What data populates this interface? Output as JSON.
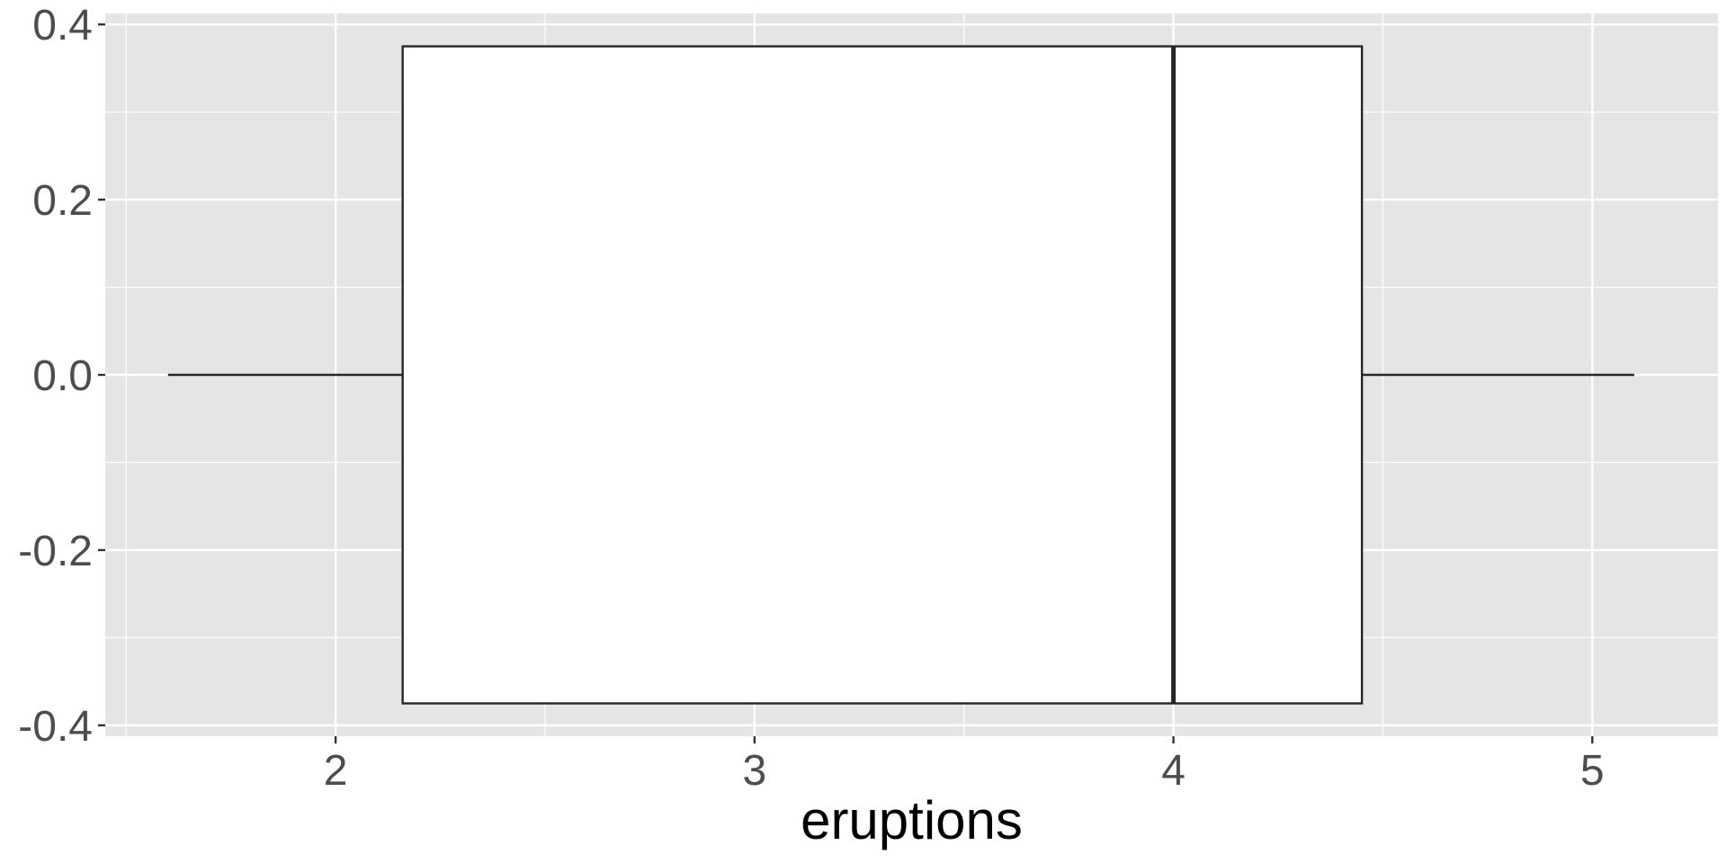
{
  "chart_data": {
    "type": "boxplot",
    "title": "",
    "xlabel": "eruptions",
    "ylabel": "",
    "xlim": [
      1.45,
      5.3
    ],
    "ylim": [
      -0.4125,
      0.4125
    ],
    "x_ticks": [
      2,
      3,
      4,
      5
    ],
    "y_ticks": [
      -0.4,
      -0.2,
      0.0,
      0.2,
      0.4
    ],
    "x_tick_labels": [
      "2",
      "3",
      "4",
      "5"
    ],
    "y_tick_labels": [
      "-0.4",
      "-0.2",
      "0.0",
      "0.2",
      "0.4"
    ],
    "grid": true,
    "legend": "none",
    "box": {
      "min": 1.6,
      "q1": 2.16,
      "median": 4.0,
      "q3": 4.45,
      "max": 5.1,
      "y_center": 0.0,
      "y_half_width": 0.375
    },
    "colors": {
      "panel_background": "#e5e5e5",
      "grid": "#ffffff",
      "box_fill": "#ffffff",
      "box_stroke": "#262626",
      "tick_label": "#4d4d4d",
      "axis_title": "#000000"
    }
  }
}
